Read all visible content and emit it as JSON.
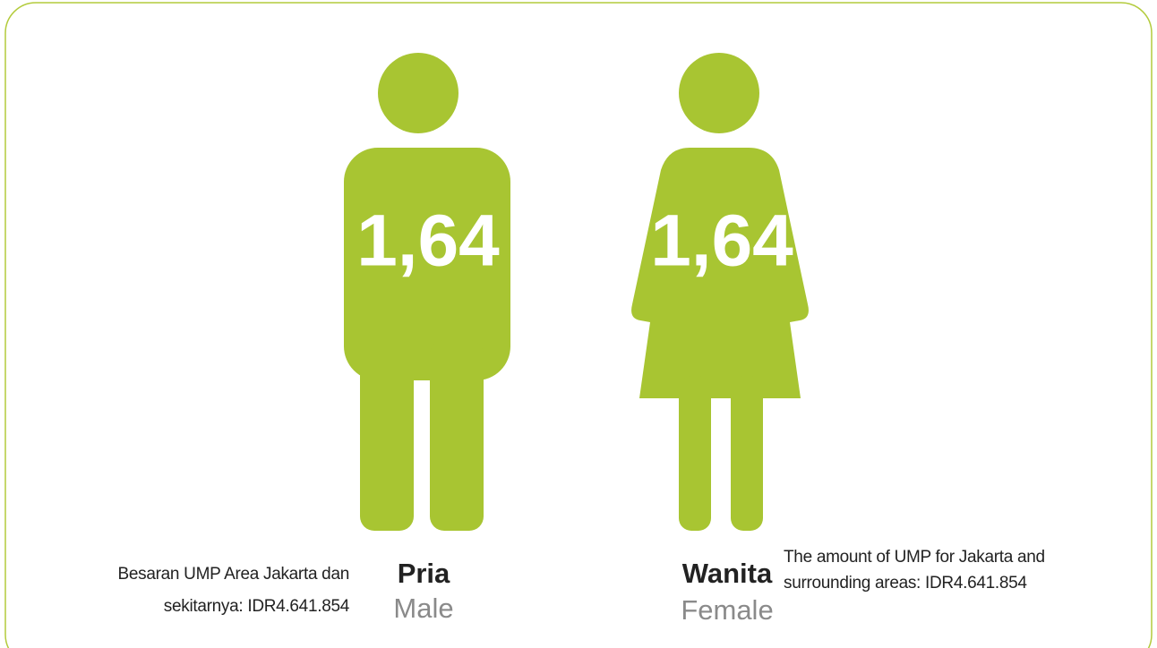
{
  "figures": [
    {
      "value": "1,64",
      "label": "Pria",
      "sublabel": "Male"
    },
    {
      "value": "1,64",
      "label": "Wanita",
      "sublabel": "Female"
    }
  ],
  "notes": {
    "left": [
      "Besaran UMP Area Jakarta dan",
      "sekitarnya: IDR4.641.854"
    ],
    "right": [
      "The amount of UMP for Jakarta and",
      "surrounding areas: IDR4.641.854"
    ]
  }
}
